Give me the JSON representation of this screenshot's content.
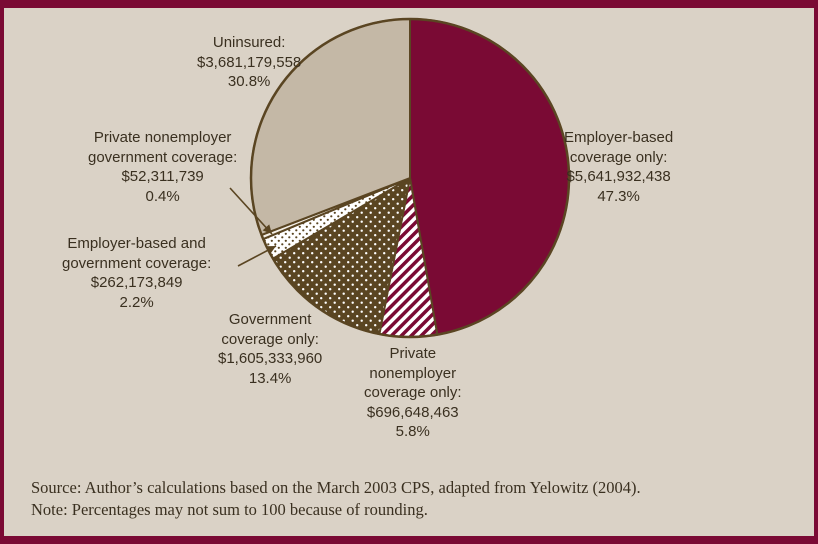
{
  "chart_data": {
    "type": "pie",
    "slices": [
      {
        "label_lines": [
          "Employer-based",
          "coverage only:",
          "$5,641,932,438",
          "47.3%"
        ],
        "amount": 5641932438,
        "percent": 47.3,
        "color": "#7a0a34",
        "fill": "solid"
      },
      {
        "label_lines": [
          "Private",
          "nonemployer",
          "coverage only:",
          "$696,648,463",
          "5.8%"
        ],
        "amount": 696648463,
        "percent": 5.8,
        "color": "#7a0a34",
        "fill": "diagonal-stripes"
      },
      {
        "label_lines": [
          "Government",
          "coverage only:",
          "$1,605,333,960",
          "13.4%"
        ],
        "amount": 1605333960,
        "percent": 13.4,
        "color": "#5a4522",
        "fill": "dots"
      },
      {
        "label_lines": [
          "Employer-based and",
          "government coverage:",
          "$262,173,849",
          "2.2%"
        ],
        "amount": 262173849,
        "percent": 2.2,
        "color": "#ffffff",
        "fill": "dots"
      },
      {
        "label_lines": [
          "Private nonemployer",
          "government coverage:",
          "$52,311,739",
          "0.4%"
        ],
        "amount": 52311739,
        "percent": 0.4,
        "color": "#f4efe6",
        "fill": "solid"
      },
      {
        "label_lines": [
          "Uninsured:",
          "$3,681,179,558",
          "30.8%"
        ],
        "amount": 3681179558,
        "percent": 30.8,
        "color": "#c4b8a6",
        "fill": "solid"
      }
    ],
    "colors": {
      "frame": "#7a0a34",
      "background": "#dad2c6",
      "outline": "#5a4522",
      "text": "#3a3020"
    }
  },
  "notes": {
    "source": "Source: Author’s calculations based on the March 2003 CPS, adapted from Yelowitz (2004).",
    "note": "Note: Percentages may not sum to 100 because of rounding."
  }
}
